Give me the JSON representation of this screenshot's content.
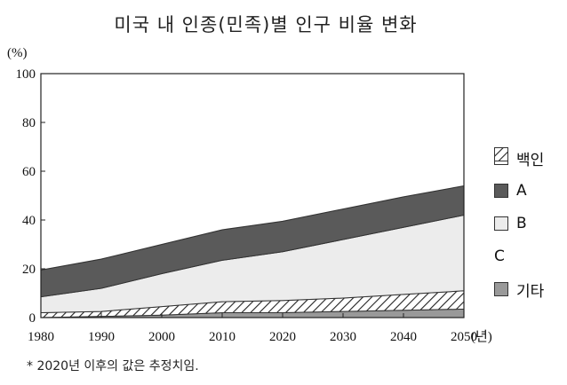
{
  "chart_data": {
    "type": "area",
    "title": "미국 내 인종(민족)별 인구 비율 변화",
    "ylabel": "(%)",
    "x_unit": "(년)",
    "ylim": [
      0,
      100
    ],
    "xlim": [
      1980,
      2050
    ],
    "x": [
      1980,
      1990,
      2000,
      2010,
      2020,
      2030,
      2040,
      2050
    ],
    "x_ticks": [
      "1980",
      "1990",
      "2000",
      "2010",
      "2020",
      "2030",
      "2040",
      "2050"
    ],
    "y_ticks": [
      "0",
      "20",
      "40",
      "60",
      "80",
      "100"
    ],
    "stacking": "stacked, bottom to top: 기타, C, B, A, 백인",
    "series": [
      {
        "name": "기타",
        "values": [
          0,
          0.5,
          1,
          2,
          2,
          2.5,
          3,
          3.5
        ],
        "color": "#999999"
      },
      {
        "name": "C",
        "values": [
          2,
          2,
          3.5,
          4.5,
          5,
          5.5,
          6.5,
          7.5
        ],
        "color": "hatched"
      },
      {
        "name": "B",
        "values": [
          6.5,
          9.5,
          13.5,
          17,
          20,
          24,
          27.5,
          31
        ],
        "color": "#ececec"
      },
      {
        "name": "A",
        "values": [
          11,
          12,
          12,
          12.5,
          12.5,
          12.5,
          12.5,
          12
        ],
        "color": "#5a5a5a"
      },
      {
        "name": "백인",
        "values": [
          80.5,
          76,
          70,
          64,
          60.5,
          55.5,
          50.5,
          46
        ],
        "color": "#ffffff"
      }
    ],
    "legend_position": "right"
  },
  "footnote": "* 2020년 이후의 값은 추정치임."
}
